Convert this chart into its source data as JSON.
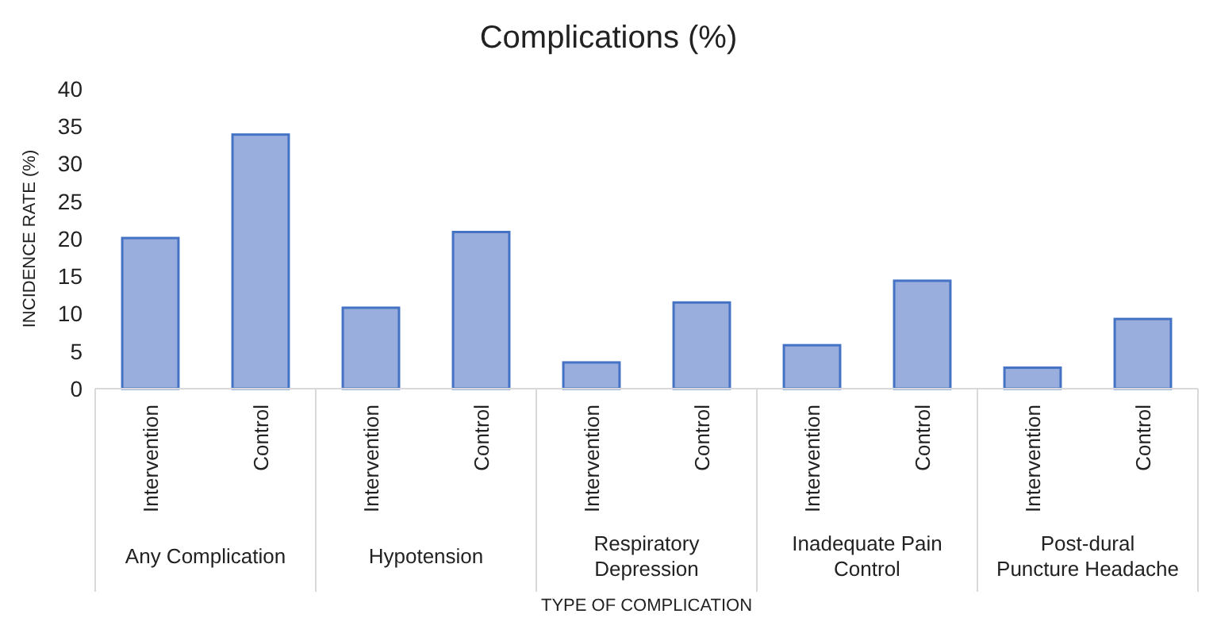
{
  "chart_data": {
    "type": "bar",
    "title": "Complications (%)",
    "xlabel": "TYPE OF COMPLICATION",
    "ylabel": "INCIDENCE RATE (%)",
    "categories": [
      "Intervention",
      "Control",
      "Intervention",
      "Control",
      "Intervention",
      "Control",
      "Intervention",
      "Control",
      "Intervention",
      "Control"
    ],
    "values": [
      20.1,
      33.9,
      10.8,
      20.9,
      3.5,
      11.5,
      5.8,
      14.4,
      2.8,
      9.3
    ],
    "color": "#9aaede",
    "ylim": [
      0,
      40
    ],
    "yticks": [
      0,
      5,
      10,
      15,
      20,
      25,
      30,
      35,
      40
    ],
    "grid": false,
    "annotations": [
      "Any Complication",
      "Hypotension",
      "Respiratory Depression",
      "Inadequate Pain Control",
      "Post-dural Puncture Headache"
    ]
  }
}
